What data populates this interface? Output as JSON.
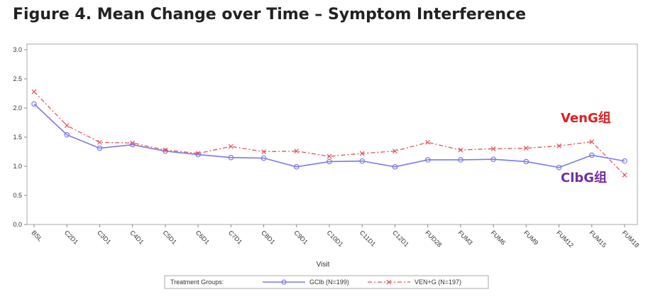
{
  "title": "Figure 4. Mean Change over Time – Symptom Interference",
  "annotations": {
    "ven": "VenG组",
    "clb": "ClbG组"
  },
  "colors": {
    "gclb": "#7a7aee",
    "veng": "#e8535a",
    "ann_ven": "#e02020",
    "ann_clb": "#7030a0"
  },
  "chart_data": {
    "type": "line",
    "title": "Figure 4. Mean Change over Time – Symptom Interference",
    "xlabel": "Visit",
    "ylabel": "",
    "categories": [
      "BSL",
      "C2D1",
      "C3D1",
      "C4D1",
      "C5D1",
      "C6D1",
      "C7D1",
      "C8D1",
      "C9D1",
      "C10D1",
      "C11D1",
      "C12D1",
      "FUD28",
      "FUM3",
      "FUM6",
      "FUM9",
      "FUM12",
      "FUM15",
      "FUM18"
    ],
    "ylim": [
      0.0,
      3.0
    ],
    "yticks": [
      "0.0",
      "0.5",
      "1.0",
      "1.5",
      "2.0",
      "2.5",
      "3.0"
    ],
    "grid": false,
    "legend_title": "Treatment Groups:",
    "legend_position": "bottom",
    "series": [
      {
        "name": "GClb (N=199)",
        "marker": "circle",
        "line": "solid",
        "values": [
          2.07,
          1.54,
          1.31,
          1.37,
          1.26,
          1.2,
          1.15,
          1.14,
          0.99,
          1.08,
          1.09,
          0.99,
          1.11,
          1.11,
          1.12,
          1.08,
          0.98,
          1.19,
          1.09
        ]
      },
      {
        "name": "VEN+G (N=197)",
        "marker": "x",
        "line": "dash-dot",
        "values": [
          2.28,
          1.7,
          1.41,
          1.4,
          1.28,
          1.22,
          1.34,
          1.25,
          1.26,
          1.17,
          1.22,
          1.26,
          1.41,
          1.28,
          1.3,
          1.31,
          1.35,
          1.42,
          0.85
        ]
      }
    ]
  }
}
